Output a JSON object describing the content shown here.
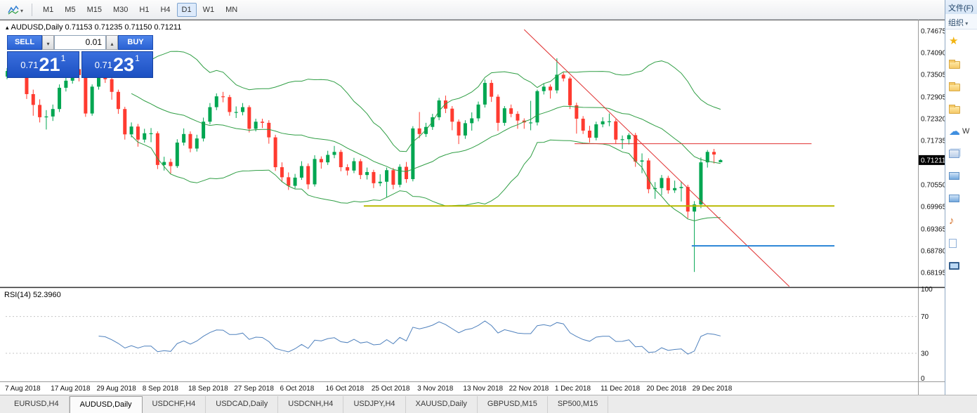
{
  "toolbar": {
    "icons": [
      {
        "name": "chart-objects-icon"
      },
      {
        "name": "dropdown-caret-icon"
      }
    ],
    "timeframes": [
      {
        "label": "M1",
        "active": false
      },
      {
        "label": "M5",
        "active": false
      },
      {
        "label": "M15",
        "active": false
      },
      {
        "label": "M30",
        "active": false
      },
      {
        "label": "H1",
        "active": false
      },
      {
        "label": "H4",
        "active": false
      },
      {
        "label": "D1",
        "active": true
      },
      {
        "label": "W1",
        "active": false
      },
      {
        "label": "MN",
        "active": false
      }
    ]
  },
  "chart_header": {
    "title": "AUDUSD,Daily 0.71153 0.71235 0.71150 0.71211"
  },
  "trade_panel": {
    "sell_label": "SELL",
    "buy_label": "BUY",
    "lot_size": "0.01",
    "sell_price": {
      "base": "0.71",
      "big": "21",
      "sup": "1"
    },
    "buy_price": {
      "base": "0.71",
      "big": "23",
      "sup": "1"
    }
  },
  "rsi_panel": {
    "label": "RSI(14) 52.3960"
  },
  "chart_data": {
    "type": "candlestick",
    "symbol": "AUDUSD",
    "timeframe": "Daily",
    "current_price": "0.71211",
    "ohlc_current": {
      "open": "0.71153",
      "high": "0.71235",
      "low": "0.71150",
      "close": "0.71211"
    },
    "price_axis_labels": [
      "0.74675",
      "0.74090",
      "0.73505",
      "0.72905",
      "0.72320",
      "0.71735",
      "0.70550",
      "0.69965",
      "0.69365",
      "0.68780",
      "0.68195"
    ],
    "date_labels": [
      "7 Aug 2018",
      "17 Aug 2018",
      "29 Aug 2018",
      "8 Sep 2018",
      "18 Sep 2018",
      "27 Sep 2018",
      "6 Oct 2018",
      "16 Oct 2018",
      "25 Oct 2018",
      "3 Nov 2018",
      "13 Nov 2018",
      "22 Nov 2018",
      "1 Dec 2018",
      "11 Dec 2018",
      "20 Dec 2018",
      "29 Dec 2018"
    ],
    "colors": {
      "up": "#00a651",
      "down": "#ff3b30",
      "bollinger": "#2f9e44",
      "rsi": "#4f81bd",
      "levels": "#c5c5c5"
    },
    "indicators": {
      "bollinger": {
        "period": 20,
        "deviation": 2
      },
      "rsi": {
        "period": 14,
        "display_value": "52.3960",
        "levels": [
          "100",
          "70",
          "30",
          "0"
        ],
        "level_values": [
          100,
          70,
          30,
          0
        ],
        "dashed_levels": [
          70,
          30
        ]
      }
    },
    "objects": [
      {
        "name": "descending-trendline",
        "type": "trend",
        "x1_index": 79,
        "price1": 0.7471,
        "x2_index": 119.5,
        "price2": 0.6782,
        "color": "#e03131",
        "width": 1
      },
      {
        "name": "resistance-hline-red",
        "type": "hline",
        "x1_index": 86.7,
        "price1": 0.7165,
        "x2_index": 122.9,
        "price2": 0.7165,
        "color": "#e03131",
        "width": 1
      },
      {
        "name": "support-hline-yellow",
        "type": "hline",
        "x1_index": 54.5,
        "price1": 0.6998,
        "x2_index": 126.4,
        "price2": 0.6998,
        "color": "#b9b900",
        "width": 2
      },
      {
        "name": "support-hline-blue",
        "type": "hline",
        "x1_index": 104.6,
        "price1": 0.6891,
        "x2_index": 126.4,
        "price2": 0.6891,
        "color": "#2f88d8",
        "width": 2
      }
    ],
    "candles": [
      [
        0.7345,
        0.7368,
        0.7338,
        0.736
      ],
      [
        0.736,
        0.7402,
        0.7352,
        0.7395
      ],
      [
        0.7395,
        0.7401,
        0.7348,
        0.7361
      ],
      [
        0.7361,
        0.7366,
        0.7285,
        0.7298
      ],
      [
        0.7298,
        0.731,
        0.724,
        0.7269
      ],
      [
        0.7269,
        0.7284,
        0.7222,
        0.7236
      ],
      [
        0.7236,
        0.7255,
        0.7203,
        0.7238
      ],
      [
        0.7238,
        0.727,
        0.7226,
        0.7258
      ],
      [
        0.7258,
        0.7324,
        0.725,
        0.7315
      ],
      [
        0.7315,
        0.7344,
        0.7305,
        0.7334
      ],
      [
        0.7334,
        0.7381,
        0.7326,
        0.7365
      ],
      [
        0.7365,
        0.7372,
        0.7332,
        0.7349
      ],
      [
        0.7349,
        0.7355,
        0.7237,
        0.7246
      ],
      [
        0.7246,
        0.7324,
        0.724,
        0.7318
      ],
      [
        0.7318,
        0.7355,
        0.731,
        0.7346
      ],
      [
        0.7346,
        0.7362,
        0.7328,
        0.7338
      ],
      [
        0.7338,
        0.7344,
        0.7283,
        0.7304
      ],
      [
        0.7304,
        0.731,
        0.7245,
        0.7258
      ],
      [
        0.7258,
        0.7264,
        0.7176,
        0.719
      ],
      [
        0.719,
        0.7222,
        0.7182,
        0.7211
      ],
      [
        0.7211,
        0.7218,
        0.7157,
        0.7176
      ],
      [
        0.7176,
        0.7205,
        0.7168,
        0.7193
      ],
      [
        0.7193,
        0.7207,
        0.7169,
        0.7193
      ],
      [
        0.7193,
        0.7198,
        0.7097,
        0.7108
      ],
      [
        0.7108,
        0.713,
        0.7093,
        0.7116
      ],
      [
        0.7116,
        0.7125,
        0.7085,
        0.7105
      ],
      [
        0.7105,
        0.7177,
        0.71,
        0.7168
      ],
      [
        0.7168,
        0.7206,
        0.716,
        0.7191
      ],
      [
        0.7191,
        0.7198,
        0.7142,
        0.7152
      ],
      [
        0.7152,
        0.7189,
        0.7144,
        0.7179
      ],
      [
        0.7179,
        0.7235,
        0.7171,
        0.7224
      ],
      [
        0.7224,
        0.7274,
        0.7217,
        0.7263
      ],
      [
        0.7263,
        0.73,
        0.7255,
        0.7292
      ],
      [
        0.7292,
        0.7304,
        0.7276,
        0.729
      ],
      [
        0.729,
        0.7296,
        0.724,
        0.725
      ],
      [
        0.725,
        0.7265,
        0.7234,
        0.725
      ],
      [
        0.725,
        0.7274,
        0.7241,
        0.7263
      ],
      [
        0.7263,
        0.7268,
        0.7195,
        0.7205
      ],
      [
        0.7205,
        0.7232,
        0.7198,
        0.7224
      ],
      [
        0.7224,
        0.7232,
        0.7207,
        0.7221
      ],
      [
        0.7221,
        0.7228,
        0.7165,
        0.7182
      ],
      [
        0.7182,
        0.7189,
        0.7092,
        0.7102
      ],
      [
        0.7102,
        0.7115,
        0.7062,
        0.7075
      ],
      [
        0.7075,
        0.7088,
        0.7041,
        0.7052
      ],
      [
        0.7052,
        0.7084,
        0.7045,
        0.7074
      ],
      [
        0.7074,
        0.7118,
        0.7068,
        0.7105
      ],
      [
        0.7105,
        0.7112,
        0.7043,
        0.7056
      ],
      [
        0.7056,
        0.7134,
        0.705,
        0.7124
      ],
      [
        0.7124,
        0.7131,
        0.7098,
        0.7115
      ],
      [
        0.7115,
        0.7146,
        0.7108,
        0.7135
      ],
      [
        0.7135,
        0.7159,
        0.7126,
        0.7143
      ],
      [
        0.7143,
        0.7149,
        0.7091,
        0.7102
      ],
      [
        0.7102,
        0.711,
        0.708,
        0.7093
      ],
      [
        0.7093,
        0.7127,
        0.7086,
        0.7118
      ],
      [
        0.7118,
        0.7124,
        0.707,
        0.7081
      ],
      [
        0.7081,
        0.7101,
        0.7069,
        0.7089
      ],
      [
        0.7089,
        0.7095,
        0.7046,
        0.7059
      ],
      [
        0.7059,
        0.7083,
        0.7051,
        0.7063
      ],
      [
        0.7063,
        0.7101,
        0.7021,
        0.7094
      ],
      [
        0.7094,
        0.71,
        0.7043,
        0.7055
      ],
      [
        0.7055,
        0.711,
        0.7048,
        0.7103
      ],
      [
        0.7103,
        0.7116,
        0.706,
        0.707
      ],
      [
        0.707,
        0.7212,
        0.7064,
        0.7206
      ],
      [
        0.7206,
        0.725,
        0.718,
        0.7191
      ],
      [
        0.7191,
        0.7221,
        0.7183,
        0.721
      ],
      [
        0.721,
        0.7245,
        0.7202,
        0.7236
      ],
      [
        0.7236,
        0.7288,
        0.7228,
        0.7281
      ],
      [
        0.7281,
        0.7294,
        0.7247,
        0.7259
      ],
      [
        0.7259,
        0.7266,
        0.7201,
        0.7224
      ],
      [
        0.7224,
        0.723,
        0.7164,
        0.7187
      ],
      [
        0.7187,
        0.7228,
        0.7178,
        0.722
      ],
      [
        0.722,
        0.7249,
        0.72,
        0.7233
      ],
      [
        0.7233,
        0.7278,
        0.7225,
        0.727
      ],
      [
        0.727,
        0.7337,
        0.7262,
        0.7328
      ],
      [
        0.7328,
        0.7336,
        0.7277,
        0.7291
      ],
      [
        0.7291,
        0.7297,
        0.7199,
        0.7221
      ],
      [
        0.7221,
        0.7266,
        0.7213,
        0.726
      ],
      [
        0.726,
        0.727,
        0.7236,
        0.7245
      ],
      [
        0.7245,
        0.7252,
        0.7205,
        0.7227
      ],
      [
        0.7227,
        0.7233,
        0.7205,
        0.7222
      ],
      [
        0.7222,
        0.728,
        0.7201,
        0.7222
      ],
      [
        0.7222,
        0.731,
        0.7214,
        0.7306
      ],
      [
        0.7306,
        0.7327,
        0.7297,
        0.7318
      ],
      [
        0.7318,
        0.7324,
        0.7286,
        0.7308
      ],
      [
        0.7308,
        0.7394,
        0.73,
        0.735
      ],
      [
        0.735,
        0.7356,
        0.7332,
        0.734
      ],
      [
        0.734,
        0.7345,
        0.7258,
        0.7268
      ],
      [
        0.7268,
        0.7275,
        0.7192,
        0.7232
      ],
      [
        0.7232,
        0.7239,
        0.7191,
        0.72
      ],
      [
        0.72,
        0.7213,
        0.7168,
        0.7181
      ],
      [
        0.7181,
        0.7224,
        0.7174,
        0.7217
      ],
      [
        0.7217,
        0.7236,
        0.7209,
        0.7225
      ],
      [
        0.7225,
        0.7246,
        0.7212,
        0.7225
      ],
      [
        0.7225,
        0.7231,
        0.7165,
        0.7176
      ],
      [
        0.7176,
        0.7187,
        0.7151,
        0.7177
      ],
      [
        0.7177,
        0.7193,
        0.7163,
        0.7188
      ],
      [
        0.7188,
        0.7194,
        0.7103,
        0.7117
      ],
      [
        0.7117,
        0.7139,
        0.7086,
        0.712
      ],
      [
        0.712,
        0.7126,
        0.7032,
        0.7043
      ],
      [
        0.7043,
        0.7062,
        0.7017,
        0.7046
      ],
      [
        0.7046,
        0.7081,
        0.7027,
        0.7073
      ],
      [
        0.7073,
        0.7079,
        0.7031,
        0.704
      ],
      [
        0.704,
        0.7066,
        0.7033,
        0.7046
      ],
      [
        0.7046,
        0.7064,
        0.701,
        0.7049
      ],
      [
        0.7049,
        0.7055,
        0.6965,
        0.6983
      ],
      [
        0.6983,
        0.7011,
        0.6821,
        0.7002
      ],
      [
        0.7002,
        0.7128,
        0.6992,
        0.7115
      ],
      [
        0.7115,
        0.7148,
        0.7101,
        0.7143
      ],
      [
        0.7143,
        0.7151,
        0.7112,
        0.7136
      ],
      [
        0.71153,
        0.71235,
        0.7115,
        0.71211
      ]
    ]
  },
  "tabs": [
    {
      "label": "EURUSD,H4",
      "active": false
    },
    {
      "label": "AUDUSD,Daily",
      "active": true
    },
    {
      "label": "USDCHF,H4",
      "active": false
    },
    {
      "label": "USDCAD,Daily",
      "active": false
    },
    {
      "label": "USDCNH,H4",
      "active": false
    },
    {
      "label": "USDJPY,H4",
      "active": false
    },
    {
      "label": "XAUUSD,Daily",
      "active": false
    },
    {
      "label": "GBPUSD,M15",
      "active": false
    },
    {
      "label": "SP500,M15",
      "active": false
    }
  ],
  "file_panel": {
    "menu_label": "文件(F)",
    "organize_label": "组织",
    "items": [
      {
        "icon": "star-icon",
        "label": ""
      },
      {
        "icon": "folder-icon",
        "label": ""
      },
      {
        "icon": "folder-icon",
        "label": ""
      },
      {
        "icon": "folder-icon",
        "label": ""
      },
      {
        "icon": "cloud-icon",
        "label": "W"
      },
      {
        "icon": "library-icon",
        "label": ""
      },
      {
        "icon": "video-icon",
        "label": ""
      },
      {
        "icon": "picture-icon",
        "label": ""
      },
      {
        "icon": "music-icon",
        "label": ""
      },
      {
        "icon": "document-icon",
        "label": ""
      },
      {
        "icon": "computer-icon",
        "label": ""
      }
    ]
  }
}
